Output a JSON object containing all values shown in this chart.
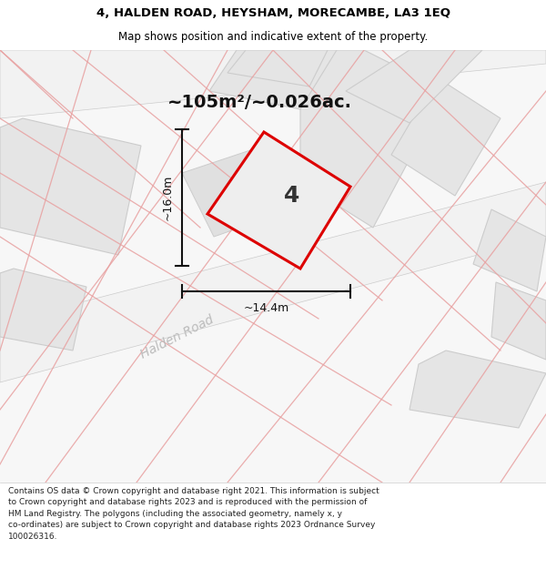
{
  "title": "4, HALDEN ROAD, HEYSHAM, MORECAMBE, LA3 1EQ",
  "subtitle": "Map shows position and indicative extent of the property.",
  "area_text": "~105m²/~0.026ac.",
  "dim_height": "~16.0m",
  "dim_width": "~14.4m",
  "property_number": "4",
  "road_label": "Halden Road",
  "footer_text": "Contains OS data © Crown copyright and database right 2021. This information is subject to Crown copyright and database rights 2023 and is reproduced with the permission of HM Land Registry. The polygons (including the associated geometry, namely x, y co-ordinates) are subject to Crown copyright and database rights 2023 Ordnance Survey 100026316.",
  "bg_color": "#ffffff",
  "map_bg": "#f7f7f7",
  "block_fill": "#e5e5e5",
  "road_fill": "#f0f0f0",
  "property_fill": "#e8e8e8",
  "boundary_color": "#dd0000",
  "dim_color": "#111111",
  "road_label_color": "#bbbbbb",
  "pink_color": "#e8a0a0",
  "gray_line_color": "#cccccc",
  "title_fontsize": 9.5,
  "subtitle_fontsize": 8.5,
  "area_fontsize": 14,
  "footer_fontsize": 6.5
}
